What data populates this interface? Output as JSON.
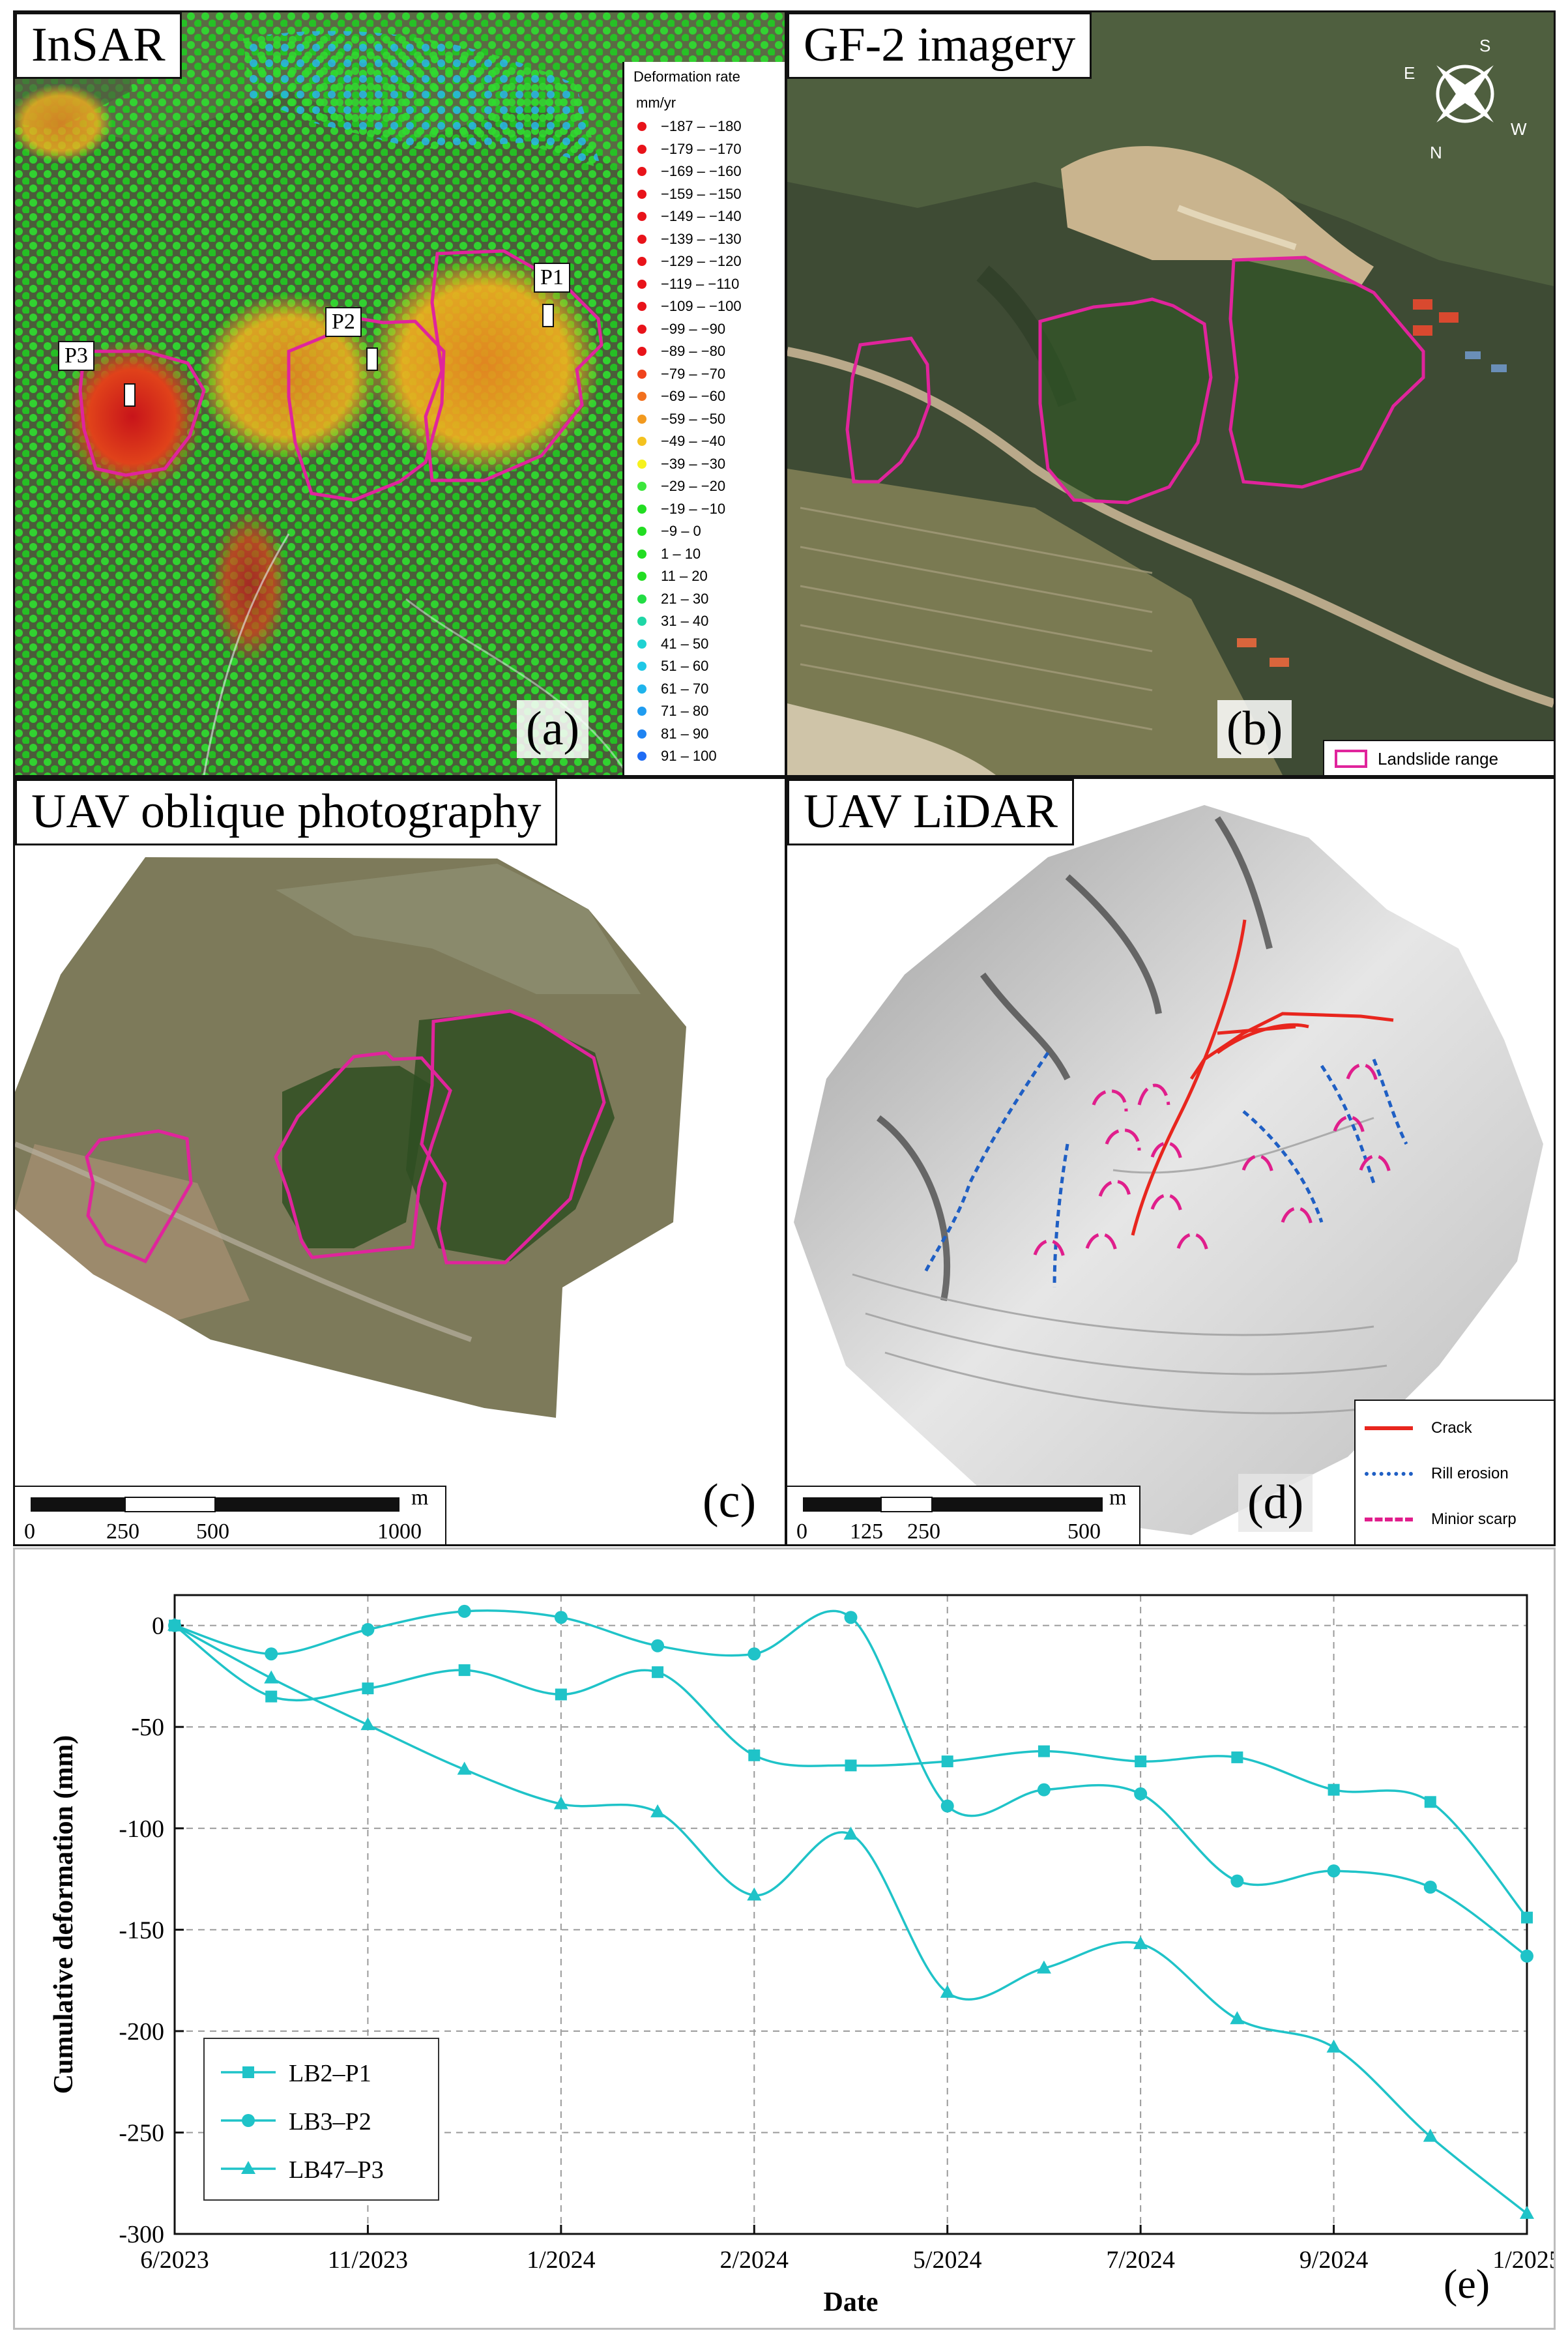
{
  "panels": {
    "a": {
      "title": "InSAR",
      "letter": "(a)",
      "legend_title": "Deformation rate",
      "legend_unit": "mm/yr",
      "legend_items": [
        {
          "label": "−187 – −180",
          "color": "#e8131a"
        },
        {
          "label": "−179 – −170",
          "color": "#e8131a"
        },
        {
          "label": "−169 – −160",
          "color": "#e8131a"
        },
        {
          "label": "−159 – −150",
          "color": "#e8131a"
        },
        {
          "label": "−149 – −140",
          "color": "#e8131a"
        },
        {
          "label": "−139 – −130",
          "color": "#e8131a"
        },
        {
          "label": "−129 – −120",
          "color": "#e8131a"
        },
        {
          "label": "−119 – −110",
          "color": "#e8131a"
        },
        {
          "label": "−109 – −100",
          "color": "#e8131a"
        },
        {
          "label": "−99 – −90",
          "color": "#e8131a"
        },
        {
          "label": "−89 – −80",
          "color": "#e8131a"
        },
        {
          "label": "−79 – −70",
          "color": "#f0431c"
        },
        {
          "label": "−69 – −60",
          "color": "#f2701e"
        },
        {
          "label": "−59 – −50",
          "color": "#f29a1f"
        },
        {
          "label": "−49 – −40",
          "color": "#f4c21f"
        },
        {
          "label": "−39 – −30",
          "color": "#f6f21e"
        },
        {
          "label": "−29 – −20",
          "color": "#3ce63c"
        },
        {
          "label": "−19 – −10",
          "color": "#22dd22"
        },
        {
          "label": "−9 – 0",
          "color": "#22dd22"
        },
        {
          "label": "1 – 10",
          "color": "#22dd22"
        },
        {
          "label": "11 – 20",
          "color": "#22dd22"
        },
        {
          "label": "21 – 30",
          "color": "#22dd44"
        },
        {
          "label": "31 – 40",
          "color": "#1fd6a6"
        },
        {
          "label": "41 – 50",
          "color": "#1fd2d2"
        },
        {
          "label": "51 – 60",
          "color": "#1fc8e6"
        },
        {
          "label": "61 – 70",
          "color": "#1fb4ec"
        },
        {
          "label": "71 – 80",
          "color": "#1f9cf0"
        },
        {
          "label": "81 – 90",
          "color": "#1f84f2"
        },
        {
          "label": "91 – 100",
          "color": "#1f6cf4"
        }
      ],
      "points": [
        "P1",
        "P2",
        "P3"
      ]
    },
    "b": {
      "title": "GF-2 imagery",
      "letter": "(b)",
      "landslide_label": "Landslide range",
      "compass": [
        "S",
        "W",
        "N",
        "E"
      ]
    },
    "c": {
      "title": "UAV oblique photography",
      "letter": "(c)",
      "scale_unit": "m",
      "scale_ticks": [
        "0",
        "250",
        "500",
        "1000"
      ]
    },
    "d": {
      "title": "UAV LiDAR",
      "letter": "(d)",
      "scale_unit": "m",
      "scale_ticks": [
        "0",
        "125",
        "250",
        "500"
      ],
      "key": [
        {
          "label": "Crack",
          "color": "#e8261e",
          "style": "solid"
        },
        {
          "label": "Rill erosion",
          "color": "#1f5fc4",
          "style": "dotted"
        },
        {
          "label": "Minior scarp",
          "color": "#e01e8c",
          "style": "dashed"
        }
      ]
    }
  },
  "colors": {
    "landslide_outline": "#e0249c",
    "series_line": "#1fc3c8"
  },
  "chart_data": {
    "type": "line",
    "letter": "(e)",
    "xlabel": "Date",
    "ylabel": "Cumulative deformation (mm)",
    "x_tick_labels": [
      "6/2023",
      "11/2023",
      "1/2024",
      "2/2024",
      "5/2024",
      "7/2024",
      "9/2024",
      "1/2025"
    ],
    "y_ticks": [
      0,
      -50,
      -100,
      -150,
      -200,
      -250,
      -300
    ],
    "ylim": [
      -300,
      15
    ],
    "grid": true,
    "legend_position": "bottom-left",
    "series": [
      {
        "name": "LB2–P1",
        "marker": "square",
        "values": [
          0,
          -35,
          -31,
          -22,
          -34,
          -23,
          -64,
          -69,
          -67,
          -62,
          -67,
          -65,
          -81,
          -87,
          -144
        ]
      },
      {
        "name": "LB3–P2",
        "marker": "circle",
        "values": [
          0,
          -14,
          -2,
          7,
          4,
          -10,
          -14,
          4,
          -89,
          -81,
          -83,
          -126,
          -121,
          -129,
          -163
        ]
      },
      {
        "name": "LB47–P3",
        "marker": "triangle",
        "values": [
          0,
          -26,
          -49,
          -71,
          -88,
          -92,
          -133,
          -103,
          -181,
          -169,
          -157,
          -194,
          -208,
          -252,
          -290
        ]
      }
    ]
  }
}
